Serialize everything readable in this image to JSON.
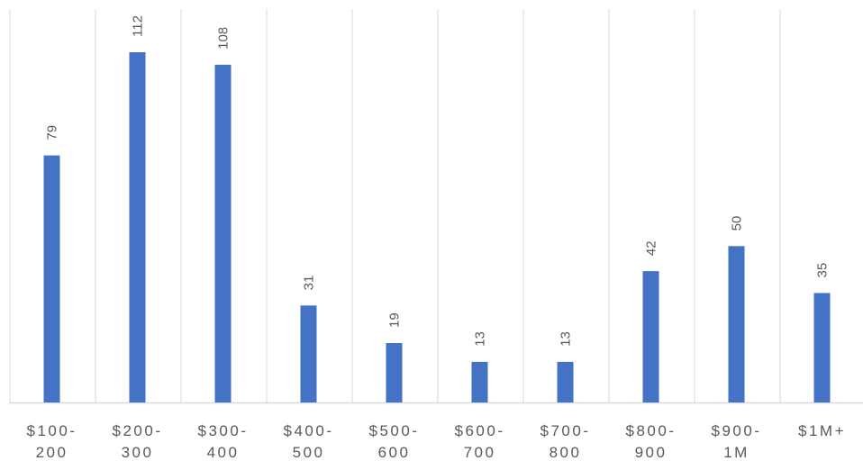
{
  "chart_data": {
    "type": "bar",
    "title": "",
    "xlabel": "",
    "ylabel": "",
    "categories": [
      [
        "$100-",
        "200"
      ],
      [
        "$200-",
        "300"
      ],
      [
        "$300-",
        "400"
      ],
      [
        "$400-",
        "500"
      ],
      [
        "$500-",
        "600"
      ],
      [
        "$600-",
        "700"
      ],
      [
        "$700-",
        "800"
      ],
      [
        "$800-",
        "900"
      ],
      [
        "$900-",
        "1M"
      ],
      [
        "$1M+"
      ]
    ],
    "values": [
      79,
      112,
      108,
      31,
      19,
      13,
      13,
      42,
      50,
      35
    ],
    "ylim": [
      0,
      120
    ],
    "grid": "vertical category separators",
    "legend": "none",
    "colors": {
      "bar": "#4472C4",
      "gridline": "#D9D9D9",
      "axis": "#D9D9D9",
      "label_text": "#595959"
    }
  }
}
